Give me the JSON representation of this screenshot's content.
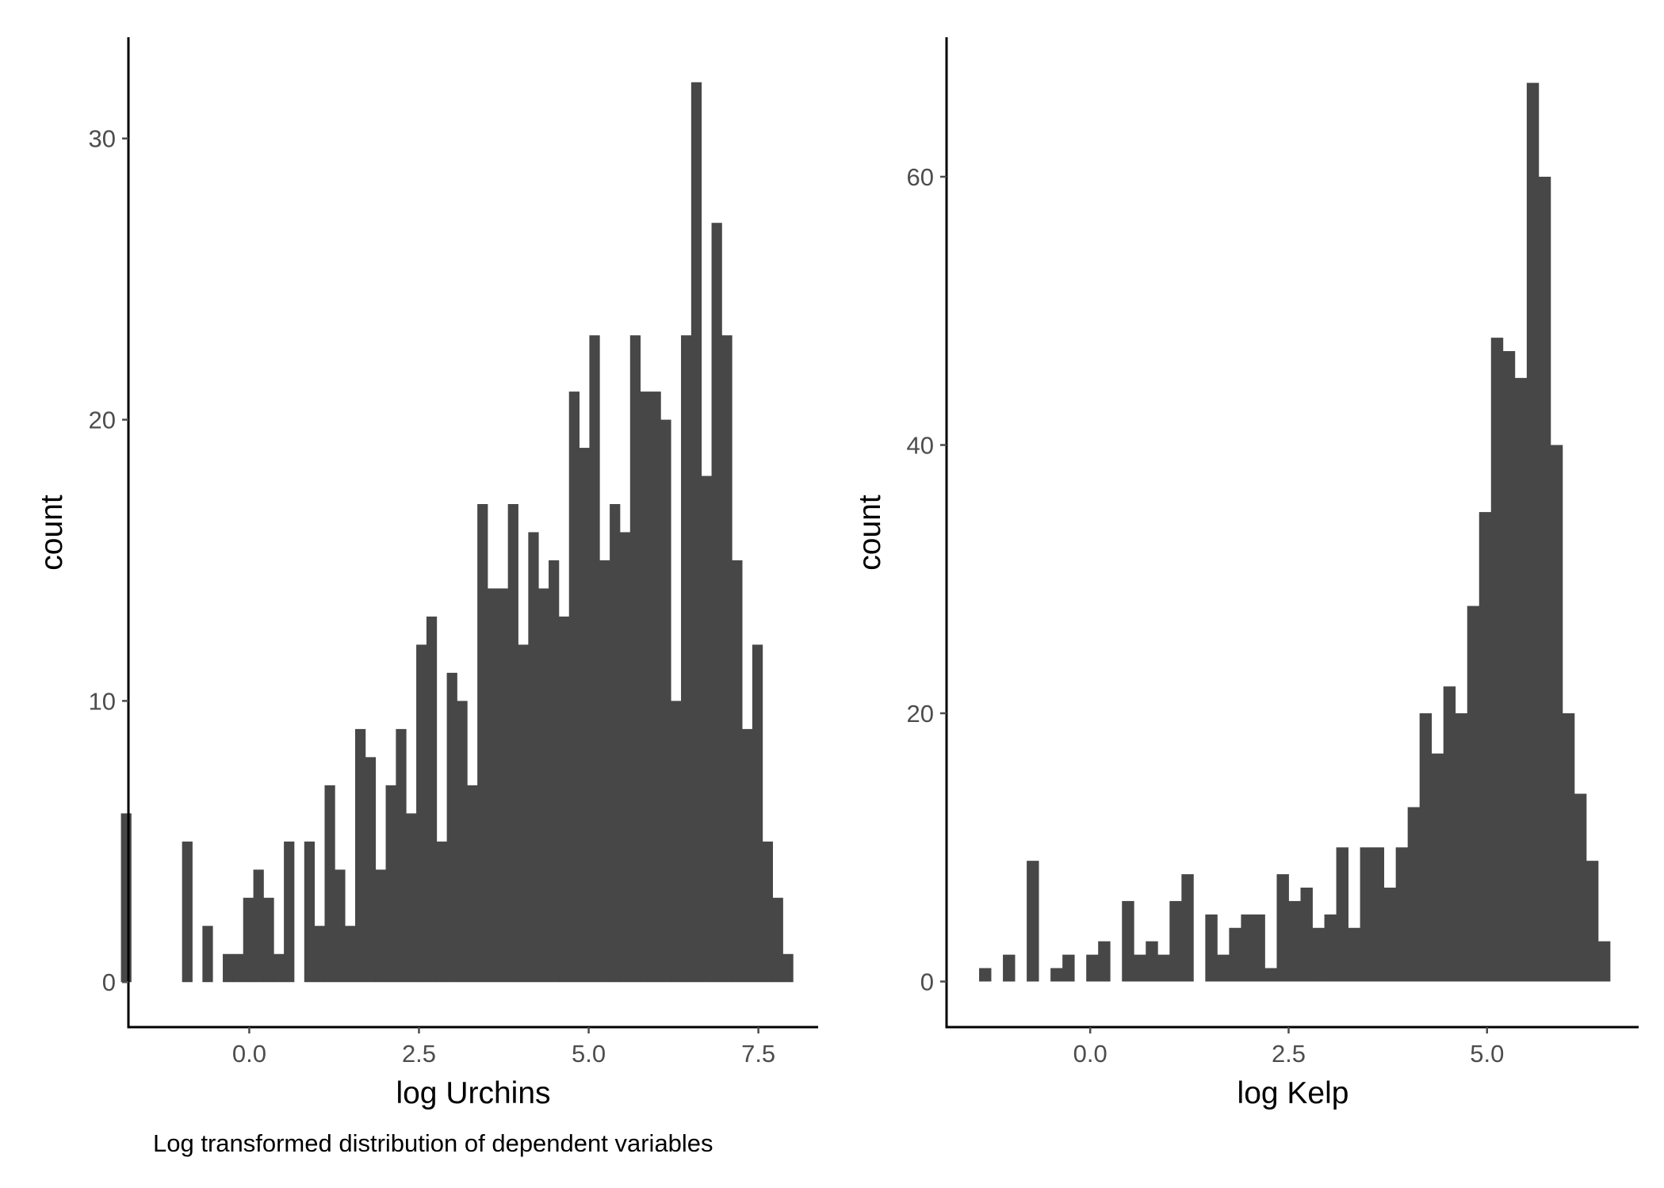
{
  "caption": "Log transformed distribution of dependent variables",
  "colors": {
    "bar": "#474747",
    "axis": "#000000",
    "tick_text": "#4d4d4d"
  },
  "chart_data": [
    {
      "type": "bar",
      "xlabel": "log Urchins",
      "ylabel": "count",
      "grid": false,
      "xlim": [
        -1.78,
        8.38
      ],
      "ylim": [
        -1.6,
        33.6
      ],
      "xticks": [
        0.0,
        2.5,
        5.0,
        7.5
      ],
      "xtick_labels": [
        "0.0",
        "2.5",
        "5.0",
        "7.5"
      ],
      "yticks": [
        0,
        10,
        20,
        30
      ],
      "ytick_labels": [
        "0",
        "10",
        "20",
        "30"
      ],
      "bin_start": -1.89,
      "bin_width": 0.15,
      "values": [
        6,
        0,
        0,
        0,
        0,
        0,
        5,
        0,
        2,
        0,
        1,
        1,
        3,
        4,
        3,
        1,
        5,
        0,
        5,
        2,
        7,
        4,
        2,
        9,
        8,
        4,
        7,
        9,
        6,
        12,
        13,
        5,
        11,
        10,
        7,
        17,
        14,
        14,
        17,
        12,
        16,
        14,
        15,
        13,
        21,
        19,
        23,
        15,
        17,
        16,
        23,
        21,
        21,
        20,
        10,
        23,
        32,
        18,
        27,
        23,
        15,
        9,
        12,
        5,
        3,
        1
      ]
    },
    {
      "type": "bar",
      "xlabel": "log Kelp",
      "ylabel": "count",
      "grid": false,
      "xlim": [
        -1.81,
        6.91
      ],
      "ylim": [
        -3.4,
        70.4
      ],
      "xticks": [
        0.0,
        2.5,
        5.0
      ],
      "xtick_labels": [
        "0.0",
        "2.5",
        "5.0"
      ],
      "yticks": [
        0,
        20,
        40,
        60
      ],
      "ytick_labels": [
        "0",
        "20",
        "40",
        "60"
      ],
      "bin_start": -1.4,
      "bin_width": 0.15,
      "values": [
        1,
        0,
        2,
        0,
        9,
        0,
        1,
        2,
        0,
        2,
        3,
        0,
        6,
        2,
        3,
        2,
        6,
        8,
        0,
        5,
        2,
        4,
        5,
        5,
        1,
        8,
        6,
        7,
        4,
        5,
        10,
        4,
        10,
        10,
        7,
        10,
        13,
        20,
        17,
        22,
        20,
        28,
        35,
        48,
        47,
        45,
        67,
        60,
        40,
        20,
        14,
        9,
        3
      ]
    }
  ]
}
